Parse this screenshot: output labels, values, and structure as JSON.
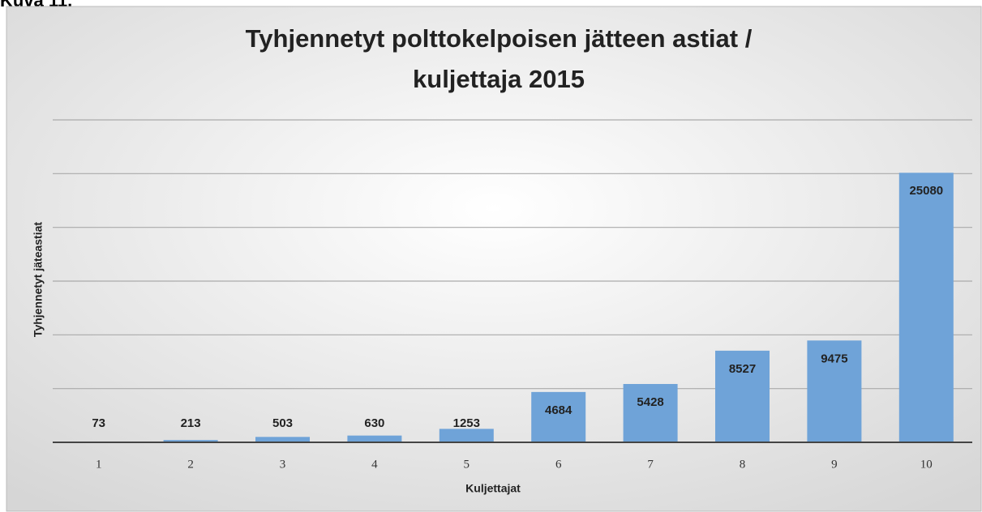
{
  "caption": "Kuva 11.",
  "chart_data": {
    "type": "bar",
    "title": [
      "Tyhjennetyt polttokelpoisen jätteen astiat /",
      "kuljettaja  2015"
    ],
    "x_label": "Kuljettajat",
    "y_label": "Tyhjennetyt jäteastiat",
    "categories": [
      "1",
      "2",
      "3",
      "4",
      "5",
      "6",
      "7",
      "8",
      "9",
      "10"
    ],
    "values": [
      73,
      213,
      503,
      630,
      1253,
      4684,
      5428,
      8527,
      9475,
      25080
    ],
    "color": "#6fa3d8",
    "ylim": [
      0,
      30000
    ],
    "yticks": [
      0,
      5000,
      10000,
      15000,
      20000,
      25000,
      30000
    ],
    "grid": true
  }
}
